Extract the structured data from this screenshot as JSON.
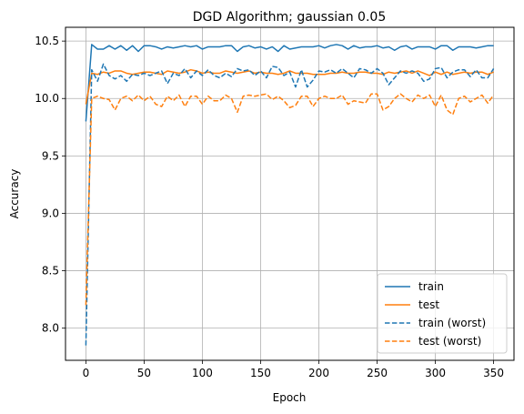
{
  "chart_data": {
    "type": "line",
    "title": "DGD Algorithm; gaussian 0.05",
    "xlabel": "Epoch",
    "ylabel": "Accuracy",
    "xlim": [
      -17.5,
      367.5
    ],
    "ylim": [
      7.72,
      10.62
    ],
    "xticks": [
      0,
      50,
      100,
      150,
      200,
      250,
      300,
      350
    ],
    "yticks": [
      8.0,
      8.5,
      9.0,
      9.5,
      10.0,
      10.5
    ],
    "ytick_labels": [
      "8.0",
      "8.5",
      "9.0",
      "9.5",
      "10.0",
      "10.5"
    ],
    "grid": true,
    "legend_position": "lower-right",
    "x": [
      0,
      5,
      10,
      15,
      20,
      25,
      30,
      35,
      40,
      45,
      50,
      55,
      60,
      65,
      70,
      75,
      80,
      85,
      90,
      95,
      100,
      105,
      110,
      115,
      120,
      125,
      130,
      135,
      140,
      145,
      150,
      155,
      160,
      165,
      170,
      175,
      180,
      185,
      190,
      195,
      200,
      205,
      210,
      215,
      220,
      225,
      230,
      235,
      240,
      245,
      250,
      255,
      260,
      265,
      270,
      275,
      280,
      285,
      290,
      295,
      300,
      305,
      310,
      315,
      320,
      325,
      330,
      335,
      340,
      345,
      350
    ],
    "series": [
      {
        "name": "train",
        "color": "#1f77b4",
        "dashed": false,
        "values": [
          9.8,
          10.47,
          10.43,
          10.43,
          10.46,
          10.43,
          10.46,
          10.42,
          10.46,
          10.41,
          10.46,
          10.46,
          10.45,
          10.43,
          10.45,
          10.44,
          10.45,
          10.46,
          10.45,
          10.46,
          10.43,
          10.45,
          10.45,
          10.45,
          10.46,
          10.46,
          10.41,
          10.45,
          10.46,
          10.44,
          10.45,
          10.43,
          10.45,
          10.41,
          10.46,
          10.43,
          10.44,
          10.45,
          10.45,
          10.45,
          10.46,
          10.44,
          10.46,
          10.47,
          10.46,
          10.43,
          10.46,
          10.44,
          10.45,
          10.45,
          10.46,
          10.44,
          10.45,
          10.42,
          10.45,
          10.46,
          10.43,
          10.45,
          10.45,
          10.45,
          10.43,
          10.46,
          10.46,
          10.42,
          10.45,
          10.45,
          10.45,
          10.44,
          10.45,
          10.46,
          10.46
        ]
      },
      {
        "name": "test",
        "color": "#ff7f0e",
        "dashed": false,
        "values": [
          9.95,
          10.22,
          10.21,
          10.23,
          10.22,
          10.24,
          10.24,
          10.22,
          10.21,
          10.22,
          10.23,
          10.23,
          10.22,
          10.21,
          10.24,
          10.23,
          10.22,
          10.23,
          10.25,
          10.24,
          10.22,
          10.23,
          10.22,
          10.22,
          10.24,
          10.23,
          10.22,
          10.23,
          10.24,
          10.22,
          10.23,
          10.22,
          10.22,
          10.21,
          10.22,
          10.24,
          10.22,
          10.22,
          10.22,
          10.21,
          10.21,
          10.21,
          10.22,
          10.22,
          10.23,
          10.22,
          10.22,
          10.23,
          10.23,
          10.22,
          10.22,
          10.21,
          10.23,
          10.22,
          10.23,
          10.24,
          10.22,
          10.24,
          10.22,
          10.2,
          10.23,
          10.21,
          10.23,
          10.21,
          10.22,
          10.23,
          10.22,
          10.23,
          10.23,
          10.21,
          10.23
        ]
      },
      {
        "name": "train (worst)",
        "color": "#1f77b4",
        "dashed": true,
        "values": [
          7.85,
          10.25,
          10.15,
          10.3,
          10.2,
          10.17,
          10.2,
          10.15,
          10.21,
          10.2,
          10.22,
          10.2,
          10.22,
          10.24,
          10.13,
          10.22,
          10.2,
          10.26,
          10.18,
          10.24,
          10.2,
          10.25,
          10.2,
          10.18,
          10.22,
          10.19,
          10.26,
          10.24,
          10.25,
          10.2,
          10.24,
          10.18,
          10.28,
          10.27,
          10.2,
          10.23,
          10.1,
          10.25,
          10.1,
          10.16,
          10.24,
          10.23,
          10.25,
          10.22,
          10.26,
          10.22,
          10.18,
          10.26,
          10.25,
          10.22,
          10.26,
          10.22,
          10.12,
          10.18,
          10.24,
          10.22,
          10.24,
          10.22,
          10.15,
          10.17,
          10.26,
          10.27,
          10.18,
          10.23,
          10.25,
          10.25,
          10.19,
          10.25,
          10.18,
          10.18,
          10.26
        ]
      },
      {
        "name": "test (worst)",
        "color": "#ff7f0e",
        "dashed": true,
        "values": [
          8.2,
          10.0,
          10.02,
          10.0,
          9.99,
          9.9,
          10.0,
          10.02,
          9.98,
          10.03,
          9.98,
          10.02,
          9.95,
          9.93,
          10.02,
          9.98,
          10.03,
          9.93,
          10.02,
          10.02,
          9.95,
          10.02,
          9.98,
          9.98,
          10.03,
          10.0,
          9.88,
          10.02,
          10.03,
          10.02,
          10.03,
          10.04,
          9.99,
          10.02,
          9.98,
          9.92,
          9.94,
          10.02,
          10.02,
          9.93,
          10.0,
          10.02,
          10.0,
          10.0,
          10.03,
          9.95,
          9.98,
          9.97,
          9.96,
          10.04,
          10.04,
          9.9,
          9.93,
          10.0,
          10.04,
          10.0,
          9.97,
          10.03,
          10.0,
          10.03,
          9.93,
          10.03,
          9.9,
          9.86,
          10.0,
          10.02,
          9.97,
          10.0,
          10.03,
          9.96,
          10.03
        ]
      }
    ]
  }
}
